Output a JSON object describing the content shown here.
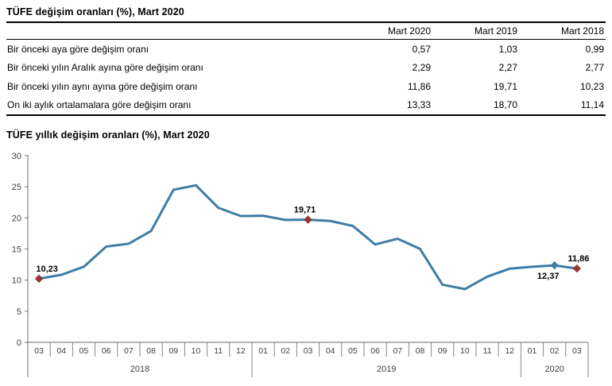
{
  "table": {
    "title": "TÜFE değişim oranları (%), Mart 2020",
    "columns": [
      "Mart 2020",
      "Mart 2019",
      "Mart 2018"
    ],
    "rows": [
      {
        "label": "Bir önceki aya göre değişim oranı",
        "values": [
          "0,57",
          "1,03",
          "0,99"
        ]
      },
      {
        "label": "Bir önceki yılın Aralık ayına göre değişim oranı",
        "values": [
          "2,29",
          "2,27",
          "2,77"
        ]
      },
      {
        "label": "Bir önceki yılın aynı ayına göre değişim oranı",
        "values": [
          "11,86",
          "19,71",
          "10,23"
        ]
      },
      {
        "label": "On iki aylık ortalamalara göre değişim oranı",
        "values": [
          "13,33",
          "18,70",
          "11,14"
        ]
      }
    ]
  },
  "chart_data": {
    "type": "line",
    "title": "TÜFE yıllık değişim oranları (%), Mart 2020",
    "x": [
      "2018-03",
      "2018-04",
      "2018-05",
      "2018-06",
      "2018-07",
      "2018-08",
      "2018-09",
      "2018-10",
      "2018-11",
      "2018-12",
      "2019-01",
      "2019-02",
      "2019-03",
      "2019-04",
      "2019-05",
      "2019-06",
      "2019-07",
      "2019-08",
      "2019-09",
      "2019-10",
      "2019-11",
      "2019-12",
      "2020-01",
      "2020-02",
      "2020-03"
    ],
    "month_labels": [
      "03",
      "04",
      "05",
      "06",
      "07",
      "08",
      "09",
      "10",
      "11",
      "12",
      "01",
      "02",
      "03",
      "04",
      "05",
      "06",
      "07",
      "08",
      "09",
      "10",
      "11",
      "12",
      "01",
      "02",
      "03"
    ],
    "year_groups": [
      {
        "label": "2018",
        "count": 10
      },
      {
        "label": "2019",
        "count": 12
      },
      {
        "label": "2020",
        "count": 3
      }
    ],
    "values": [
      10.23,
      10.85,
      12.15,
      15.39,
      15.85,
      17.9,
      24.52,
      25.24,
      21.62,
      20.3,
      20.35,
      19.67,
      19.71,
      19.5,
      18.71,
      15.72,
      16.65,
      15.01,
      9.26,
      8.55,
      10.56,
      11.84,
      12.15,
      12.37,
      11.86
    ],
    "ylim": [
      0,
      30
    ],
    "ytick_step": 5,
    "ytick_labels": [
      "0",
      "5",
      "10",
      "15",
      "20",
      "25",
      "30"
    ],
    "grid": "off",
    "legend": "none",
    "annotations": [
      {
        "index": 0,
        "label": "10,23",
        "placement": "above",
        "dx": 10,
        "marker_color": "#943634"
      },
      {
        "index": 12,
        "label": "19,71",
        "placement": "above",
        "dx": -4,
        "marker_color": "#943634"
      },
      {
        "index": 23,
        "label": "12,37",
        "placement": "below",
        "dx": -8,
        "marker_color": "#3E7DA6"
      },
      {
        "index": 24,
        "label": "11,86",
        "placement": "above",
        "dx": 2,
        "marker_color": "#943634"
      }
    ],
    "line_color": "#3E7DA6",
    "marker_color_default": "#943634",
    "axis_color": "#898989",
    "tick_text_color": "#3f3f3f",
    "annotation_text_color": "#000000"
  }
}
